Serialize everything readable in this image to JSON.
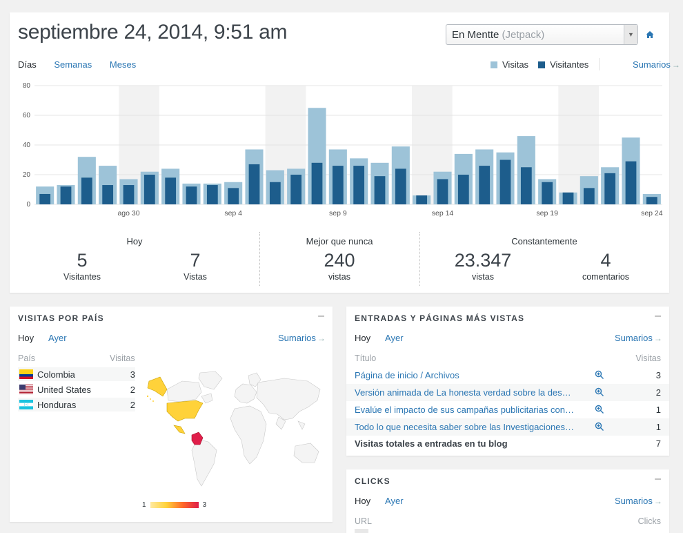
{
  "header": {
    "title": "septiembre 24, 2014, 9:51 am",
    "site_select": {
      "value": "En Mentte",
      "suffix": "(Jetpack)"
    },
    "home_icon": "home-icon"
  },
  "period_tabs": [
    {
      "label": "Días",
      "active": true
    },
    {
      "label": "Semanas",
      "active": false
    },
    {
      "label": "Meses",
      "active": false
    }
  ],
  "legend": {
    "visits": "Visitas",
    "visitors": "Visitantes"
  },
  "summaries_label": "Sumarios",
  "colors": {
    "visits": "#9dc3d8",
    "visitors": "#1d5d8c",
    "link": "#2a76b3",
    "weekend": "#f2f2f2"
  },
  "chart_data": {
    "type": "bar",
    "ylim": [
      0,
      80
    ],
    "yticks": [
      0,
      20,
      40,
      60,
      80
    ],
    "xtick_labels": [
      {
        "index": 4,
        "label": "ago 30"
      },
      {
        "index": 9,
        "label": "sep 4"
      },
      {
        "index": 14,
        "label": "sep 9"
      },
      {
        "index": 19,
        "label": "sep 14"
      },
      {
        "index": 24,
        "label": "sep 19"
      },
      {
        "index": 29,
        "label": "sep 24"
      }
    ],
    "weekend_ranges": [
      [
        4,
        5
      ],
      [
        11,
        12
      ],
      [
        18,
        19
      ],
      [
        25,
        26
      ]
    ],
    "series": [
      {
        "name": "Visitas",
        "values": [
          12,
          13,
          32,
          26,
          17,
          22,
          24,
          14,
          14,
          15,
          37,
          23,
          24,
          65,
          37,
          31,
          28,
          39,
          6,
          22,
          34,
          37,
          35,
          46,
          17,
          8,
          19,
          25,
          45,
          7
        ]
      },
      {
        "name": "Visitantes",
        "values": [
          7,
          12,
          18,
          13,
          13,
          20,
          18,
          12,
          13,
          11,
          27,
          15,
          20,
          28,
          26,
          26,
          19,
          24,
          6,
          17,
          20,
          26,
          30,
          25,
          15,
          8,
          11,
          21,
          29,
          5
        ]
      }
    ]
  },
  "stats": {
    "today": {
      "title": "Hoy",
      "visitors_num": "5",
      "visitors_label": "Visitantes",
      "views_num": "7",
      "views_label": "Vistas"
    },
    "best": {
      "title": "Mejor que nunca",
      "num": "240",
      "label": "vistas"
    },
    "all_time": {
      "title": "Constantemente",
      "views_num": "23.347",
      "views_label": "vistas",
      "comments_num": "4",
      "comments_label": "comentarios"
    }
  },
  "countries": {
    "title": "VISITAS POR PAÍS",
    "tabs": [
      "Hoy",
      "Ayer"
    ],
    "col_country": "País",
    "col_visits": "Visitas",
    "rows": [
      {
        "name": "Colombia",
        "value": "3",
        "flag": "flag-colombia-icon"
      },
      {
        "name": "United States",
        "value": "2",
        "flag": "flag-us-icon"
      },
      {
        "name": "Honduras",
        "value": "2",
        "flag": "flag-honduras-icon"
      }
    ],
    "scale_min": "1",
    "scale_max": "3"
  },
  "posts": {
    "title": "ENTRADAS Y PÁGINAS MÁS VISTAS",
    "tabs": [
      "Hoy",
      "Ayer"
    ],
    "col_title": "Título",
    "col_visits": "Visitas",
    "rows": [
      {
        "title": "Página de inicio / Archivos",
        "value": "3"
      },
      {
        "title": "Versión animada de La honesta verdad sobre la desho…",
        "value": "2"
      },
      {
        "title": "Evalúe el impacto de sus campañas publicitarias con e…",
        "value": "1"
      },
      {
        "title": "Todo lo que necesita saber sobre las Investigaciones d…",
        "value": "1"
      }
    ],
    "total_label": "Visitas totales a entradas en tu blog",
    "total_value": "7"
  },
  "clicks": {
    "title": "CLICKS",
    "tabs": [
      "Hoy",
      "Ayer"
    ],
    "col_url": "URL",
    "col_clicks": "Clicks"
  }
}
